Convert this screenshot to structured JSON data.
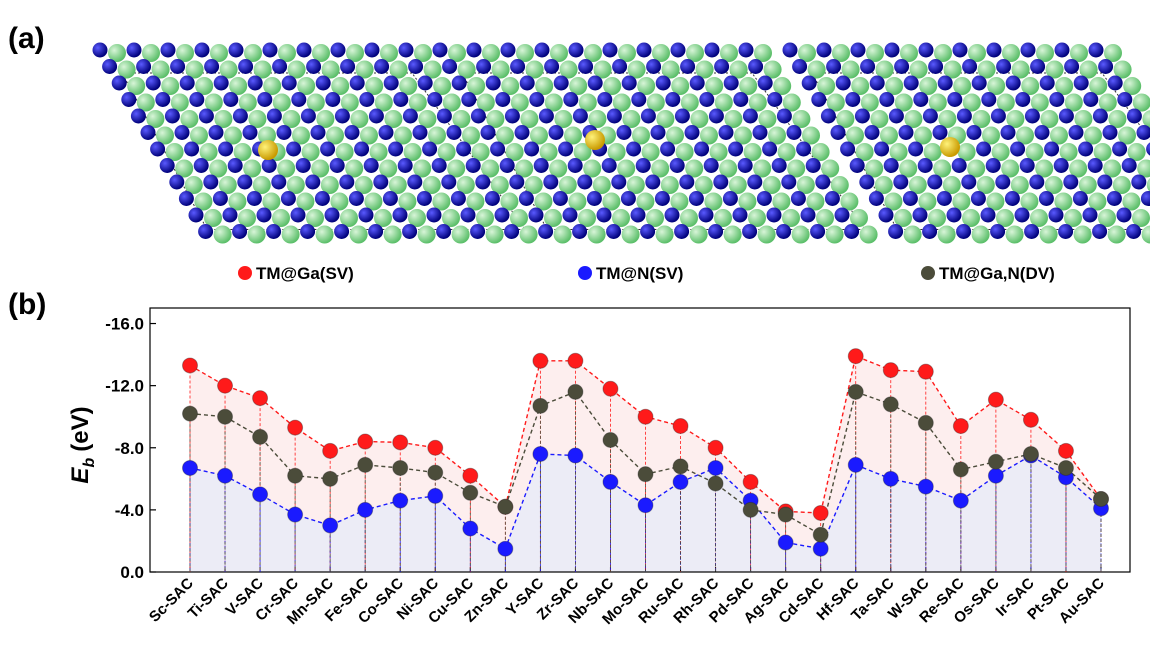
{
  "figure": {
    "panel_a_label": "(a)",
    "panel_b_label": "(b)"
  },
  "chart_data": {
    "type": "line",
    "y_label": {
      "symbol": "E",
      "subscript": "b",
      "unit": "(eV)"
    },
    "categories": [
      "Sc-SAC",
      "Ti-SAC",
      "V-SAC",
      "Cr-SAC",
      "Mn-SAC",
      "Fe-SAC",
      "Co-SAC",
      "Ni-SAC",
      "Cu-SAC",
      "Zn-SAC",
      "Y-SAC",
      "Zr-SAC",
      "Nb-SAC",
      "Mo-SAC",
      "Ru-SAC",
      "Rh-SAC",
      "Pd-SAC",
      "Ag-SAC",
      "Cd-SAC",
      "Hf-SAC",
      "Ta-SAC",
      "W-SAC",
      "Re-SAC",
      "Os-SAC",
      "Ir-SAC",
      "Pt-SAC",
      "Au-SAC"
    ],
    "series": [
      {
        "name": "TM@Ga(SV)",
        "color": "#ff1a1a",
        "area_color": "#fdeeee",
        "values": [
          -13.3,
          -12.0,
          -11.2,
          -9.3,
          -7.8,
          -8.4,
          -8.35,
          -8.0,
          -6.2,
          -4.2,
          -13.6,
          -13.6,
          -11.8,
          -10.0,
          -9.4,
          -8.0,
          -5.8,
          -3.9,
          -3.8,
          -13.9,
          -13.0,
          -12.9,
          -9.4,
          -11.1,
          -9.8,
          -7.8,
          -4.7
        ]
      },
      {
        "name": "TM@N(SV)",
        "color": "#1a1aff",
        "area_color": "#ececf6",
        "values": [
          -6.7,
          -6.2,
          -5.0,
          -3.7,
          -3.0,
          -4.0,
          -4.6,
          -4.9,
          -2.8,
          -1.5,
          -7.6,
          -7.5,
          -5.8,
          -4.3,
          -5.8,
          -6.7,
          -4.6,
          -1.9,
          -1.5,
          -6.9,
          -6.0,
          -5.5,
          -4.6,
          -6.2,
          -7.5,
          -6.1,
          -4.1
        ]
      },
      {
        "name": "TM@Ga,N(DV)",
        "color": "#4b4c3a",
        "values": [
          -10.2,
          -10.0,
          -8.7,
          -6.2,
          -6.0,
          -6.9,
          -6.7,
          -6.4,
          -5.1,
          -4.2,
          -10.7,
          -11.6,
          -8.5,
          -6.3,
          -6.8,
          -5.7,
          -4.0,
          -3.7,
          -2.4,
          -11.6,
          -10.8,
          -9.6,
          -6.6,
          -7.1,
          -7.6,
          -6.7,
          -4.7
        ]
      }
    ],
    "ylim": [
      0,
      -17
    ],
    "yticks": [
      {
        "value": 0,
        "label": "0.0"
      },
      {
        "value": -4,
        "label": "-4.0"
      },
      {
        "value": -8,
        "label": "-8.0"
      },
      {
        "value": -12,
        "label": "-12.0"
      },
      {
        "value": -16,
        "label": "-16.0"
      }
    ],
    "drop_lines": true,
    "area_fill": true
  }
}
